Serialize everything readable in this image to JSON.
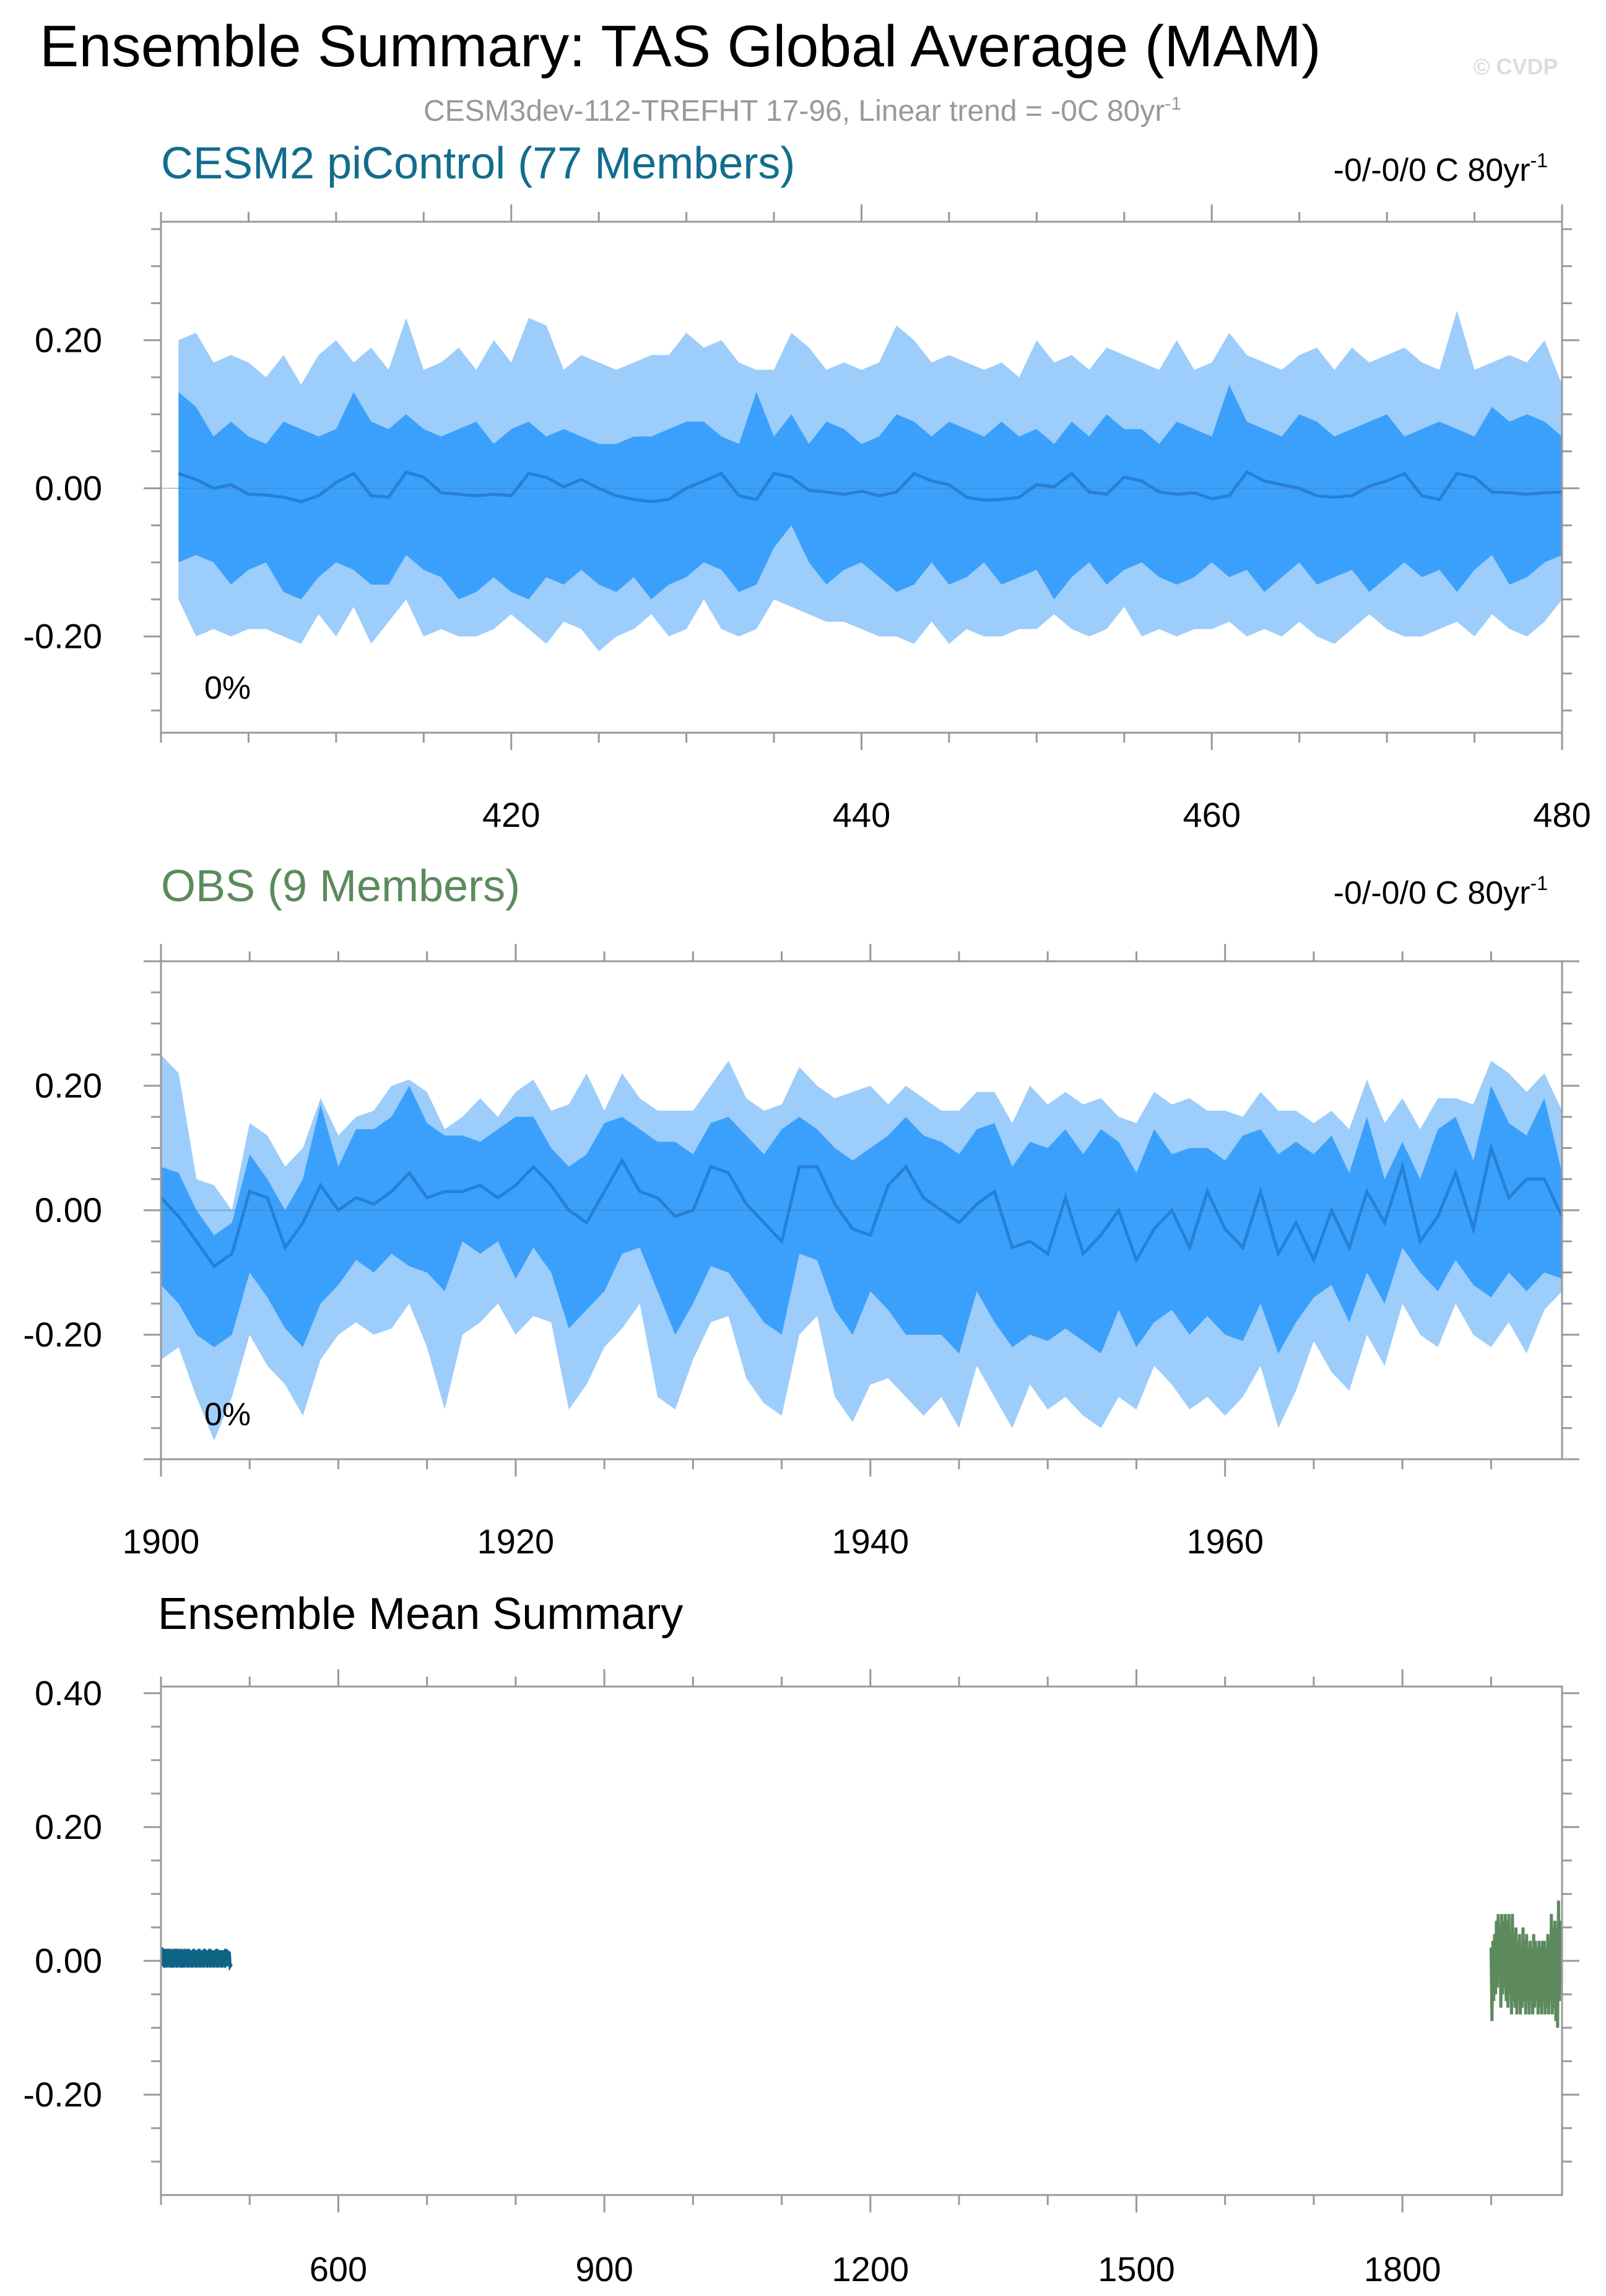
{
  "figure": {
    "title": "Ensemble Summary: TAS Global Average (MAM)",
    "subtitle": "CESM3dev-112-TREFHT 17-96, Linear trend = -0C 80yr",
    "subtitle_sup": "-1",
    "watermark": "© CVDP"
  },
  "chart_data": [
    {
      "type": "area",
      "title": "CESM2 piControl (77 Members)",
      "title_color": "#116d8d",
      "trend_label": "-0/-0/0 C 80yr",
      "trend_sup": "-1",
      "percent_label": "0%",
      "ylim": [
        -0.33,
        0.36
      ],
      "xlim": [
        400,
        480
      ],
      "yticks": [
        -0.2,
        0.0,
        0.2
      ],
      "ytick_labels": [
        "-0.20",
        "0.00",
        "0.20"
      ],
      "xticks": [
        420,
        440,
        460,
        480
      ],
      "xtick_labels": [
        "420",
        "440",
        "460",
        "480"
      ],
      "x_start": 401,
      "x_step": 1,
      "mean": [
        0.02,
        0.012,
        0.0,
        0.005,
        -0.008,
        -0.009,
        -0.012,
        -0.018,
        -0.01,
        0.008,
        0.02,
        -0.01,
        -0.012,
        0.022,
        0.015,
        -0.006,
        -0.008,
        -0.01,
        -0.008,
        -0.01,
        0.02,
        0.015,
        0.002,
        0.012,
        0.0,
        -0.01,
        -0.015,
        -0.018,
        -0.015,
        0.0,
        0.01,
        0.02,
        -0.01,
        -0.015,
        0.02,
        0.015,
        -0.003,
        -0.005,
        -0.008,
        -0.004,
        -0.01,
        -0.005,
        0.02,
        0.01,
        0.005,
        -0.012,
        -0.016,
        -0.015,
        -0.012,
        0.005,
        0.002,
        0.02,
        -0.005,
        -0.008,
        0.015,
        0.01,
        -0.005,
        -0.008,
        -0.006,
        -0.014,
        -0.01,
        0.022,
        0.01,
        0.005,
        0.0,
        -0.01,
        -0.012,
        -0.01,
        0.003,
        0.01,
        0.02,
        -0.01,
        -0.015,
        0.02,
        0.015,
        -0.005,
        -0.006,
        -0.008,
        -0.006,
        -0.005
      ],
      "p25": [
        -0.1,
        -0.09,
        -0.1,
        -0.13,
        -0.11,
        -0.1,
        -0.14,
        -0.15,
        -0.12,
        -0.1,
        -0.11,
        -0.13,
        -0.13,
        -0.09,
        -0.11,
        -0.12,
        -0.15,
        -0.14,
        -0.12,
        -0.14,
        -0.15,
        -0.12,
        -0.13,
        -0.11,
        -0.13,
        -0.14,
        -0.12,
        -0.15,
        -0.13,
        -0.12,
        -0.1,
        -0.11,
        -0.14,
        -0.13,
        -0.08,
        -0.05,
        -0.1,
        -0.13,
        -0.11,
        -0.1,
        -0.12,
        -0.14,
        -0.13,
        -0.1,
        -0.13,
        -0.12,
        -0.1,
        -0.13,
        -0.12,
        -0.11,
        -0.15,
        -0.12,
        -0.1,
        -0.13,
        -0.11,
        -0.1,
        -0.12,
        -0.13,
        -0.12,
        -0.1,
        -0.12,
        -0.11,
        -0.14,
        -0.12,
        -0.1,
        -0.13,
        -0.12,
        -0.11,
        -0.14,
        -0.12,
        -0.1,
        -0.12,
        -0.11,
        -0.14,
        -0.11,
        -0.09,
        -0.13,
        -0.12,
        -0.1,
        -0.09
      ],
      "p75": [
        0.13,
        0.11,
        0.07,
        0.09,
        0.07,
        0.06,
        0.09,
        0.08,
        0.07,
        0.08,
        0.13,
        0.09,
        0.08,
        0.1,
        0.08,
        0.07,
        0.08,
        0.09,
        0.06,
        0.08,
        0.09,
        0.07,
        0.08,
        0.07,
        0.06,
        0.06,
        0.07,
        0.07,
        0.08,
        0.09,
        0.09,
        0.07,
        0.06,
        0.13,
        0.07,
        0.1,
        0.06,
        0.09,
        0.08,
        0.06,
        0.07,
        0.1,
        0.09,
        0.07,
        0.09,
        0.08,
        0.07,
        0.09,
        0.07,
        0.08,
        0.06,
        0.09,
        0.07,
        0.1,
        0.08,
        0.08,
        0.06,
        0.09,
        0.08,
        0.07,
        0.14,
        0.09,
        0.08,
        0.07,
        0.1,
        0.09,
        0.07,
        0.08,
        0.09,
        0.1,
        0.07,
        0.08,
        0.09,
        0.08,
        0.07,
        0.11,
        0.09,
        0.1,
        0.09,
        0.07
      ],
      "p0": [
        -0.15,
        -0.2,
        -0.19,
        -0.2,
        -0.19,
        -0.19,
        -0.2,
        -0.21,
        -0.17,
        -0.2,
        -0.16,
        -0.21,
        -0.18,
        -0.15,
        -0.2,
        -0.19,
        -0.2,
        -0.2,
        -0.19,
        -0.17,
        -0.19,
        -0.21,
        -0.18,
        -0.19,
        -0.22,
        -0.2,
        -0.19,
        -0.17,
        -0.2,
        -0.19,
        -0.15,
        -0.19,
        -0.2,
        -0.19,
        -0.15,
        -0.16,
        -0.17,
        -0.18,
        -0.18,
        -0.19,
        -0.2,
        -0.2,
        -0.21,
        -0.18,
        -0.21,
        -0.19,
        -0.2,
        -0.2,
        -0.19,
        -0.19,
        -0.17,
        -0.19,
        -0.2,
        -0.19,
        -0.16,
        -0.2,
        -0.19,
        -0.2,
        -0.19,
        -0.19,
        -0.18,
        -0.2,
        -0.19,
        -0.2,
        -0.18,
        -0.2,
        -0.21,
        -0.19,
        -0.17,
        -0.19,
        -0.2,
        -0.2,
        -0.19,
        -0.18,
        -0.2,
        -0.17,
        -0.19,
        -0.2,
        -0.18,
        -0.15
      ],
      "p100": [
        0.2,
        0.21,
        0.17,
        0.18,
        0.17,
        0.15,
        0.18,
        0.14,
        0.18,
        0.2,
        0.17,
        0.19,
        0.16,
        0.23,
        0.16,
        0.17,
        0.19,
        0.16,
        0.2,
        0.17,
        0.23,
        0.22,
        0.16,
        0.18,
        0.17,
        0.16,
        0.17,
        0.18,
        0.18,
        0.21,
        0.19,
        0.2,
        0.17,
        0.16,
        0.16,
        0.21,
        0.19,
        0.16,
        0.17,
        0.16,
        0.17,
        0.22,
        0.2,
        0.17,
        0.18,
        0.17,
        0.16,
        0.17,
        0.15,
        0.2,
        0.17,
        0.18,
        0.16,
        0.19,
        0.18,
        0.17,
        0.16,
        0.2,
        0.16,
        0.17,
        0.21,
        0.18,
        0.17,
        0.16,
        0.18,
        0.19,
        0.16,
        0.19,
        0.17,
        0.18,
        0.19,
        0.17,
        0.16,
        0.24,
        0.16,
        0.17,
        0.18,
        0.17,
        0.2,
        0.14
      ]
    },
    {
      "type": "area",
      "title": "OBS (9 Members)",
      "title_color": "#5c8a5c",
      "trend_label": "-0/-0/0 C 80yr",
      "trend_sup": "-1",
      "percent_label": "0%",
      "ylim": [
        -0.4,
        0.4
      ],
      "xlim": [
        1900,
        1979
      ],
      "yticks": [
        -0.2,
        0.0,
        0.2
      ],
      "ytick_labels": [
        "-0.20",
        "0.00",
        "0.20"
      ],
      "xticks": [
        1900,
        1920,
        1940,
        1960
      ],
      "xtick_labels": [
        "1900",
        "1920",
        "1940",
        "1960"
      ],
      "x_start": 1900,
      "x_step": 1,
      "mean": [
        0.02,
        -0.01,
        -0.05,
        -0.09,
        -0.07,
        0.03,
        0.02,
        -0.06,
        -0.02,
        0.04,
        0.0,
        0.02,
        0.01,
        0.03,
        0.06,
        0.02,
        0.03,
        0.03,
        0.04,
        0.02,
        0.04,
        0.07,
        0.04,
        0.0,
        -0.02,
        0.03,
        0.08,
        0.03,
        0.02,
        -0.01,
        0.0,
        0.07,
        0.06,
        0.01,
        -0.02,
        -0.05,
        0.07,
        0.07,
        0.01,
        -0.03,
        -0.04,
        0.04,
        0.07,
        0.02,
        0.0,
        -0.02,
        0.01,
        0.03,
        -0.06,
        -0.05,
        -0.07,
        0.02,
        -0.07,
        -0.04,
        0.0,
        -0.08,
        -0.03,
        0.0,
        -0.06,
        0.03,
        -0.03,
        -0.06,
        0.03,
        -0.07,
        -0.02,
        -0.08,
        0.0,
        -0.06,
        0.03,
        -0.02,
        0.07,
        -0.05,
        -0.01,
        0.06,
        -0.03,
        0.1,
        0.02,
        0.05,
        0.05,
        -0.01
      ],
      "p25": [
        -0.12,
        -0.15,
        -0.2,
        -0.22,
        -0.2,
        -0.1,
        -0.14,
        -0.19,
        -0.22,
        -0.15,
        -0.12,
        -0.08,
        -0.1,
        -0.07,
        -0.09,
        -0.1,
        -0.13,
        -0.05,
        -0.07,
        -0.05,
        -0.11,
        -0.06,
        -0.1,
        -0.19,
        -0.16,
        -0.13,
        -0.07,
        -0.06,
        -0.13,
        -0.2,
        -0.15,
        -0.09,
        -0.1,
        -0.14,
        -0.18,
        -0.2,
        -0.07,
        -0.08,
        -0.16,
        -0.2,
        -0.13,
        -0.16,
        -0.2,
        -0.2,
        -0.2,
        -0.23,
        -0.13,
        -0.18,
        -0.22,
        -0.2,
        -0.21,
        -0.19,
        -0.21,
        -0.23,
        -0.16,
        -0.22,
        -0.18,
        -0.16,
        -0.2,
        -0.17,
        -0.2,
        -0.21,
        -0.15,
        -0.23,
        -0.18,
        -0.14,
        -0.12,
        -0.18,
        -0.1,
        -0.15,
        -0.06,
        -0.1,
        -0.13,
        -0.08,
        -0.12,
        -0.14,
        -0.1,
        -0.13,
        -0.1,
        -0.11
      ],
      "p75": [
        0.07,
        0.06,
        0.0,
        -0.04,
        -0.02,
        0.09,
        0.05,
        0.0,
        0.05,
        0.17,
        0.07,
        0.13,
        0.13,
        0.15,
        0.2,
        0.14,
        0.12,
        0.12,
        0.11,
        0.13,
        0.15,
        0.15,
        0.1,
        0.07,
        0.09,
        0.14,
        0.15,
        0.13,
        0.11,
        0.11,
        0.09,
        0.14,
        0.15,
        0.12,
        0.09,
        0.13,
        0.15,
        0.13,
        0.1,
        0.08,
        0.1,
        0.12,
        0.15,
        0.12,
        0.11,
        0.09,
        0.13,
        0.14,
        0.07,
        0.11,
        0.1,
        0.13,
        0.09,
        0.13,
        0.11,
        0.06,
        0.13,
        0.09,
        0.1,
        0.1,
        0.08,
        0.12,
        0.13,
        0.09,
        0.11,
        0.09,
        0.12,
        0.06,
        0.15,
        0.05,
        0.11,
        0.05,
        0.13,
        0.15,
        0.08,
        0.2,
        0.14,
        0.12,
        0.18,
        0.06
      ],
      "p0": [
        -0.24,
        -0.22,
        -0.3,
        -0.37,
        -0.3,
        -0.2,
        -0.25,
        -0.28,
        -0.33,
        -0.24,
        -0.2,
        -0.18,
        -0.2,
        -0.19,
        -0.15,
        -0.22,
        -0.32,
        -0.2,
        -0.18,
        -0.15,
        -0.2,
        -0.17,
        -0.18,
        -0.32,
        -0.28,
        -0.22,
        -0.19,
        -0.15,
        -0.3,
        -0.32,
        -0.24,
        -0.18,
        -0.17,
        -0.27,
        -0.31,
        -0.33,
        -0.2,
        -0.17,
        -0.3,
        -0.34,
        -0.28,
        -0.27,
        -0.3,
        -0.33,
        -0.3,
        -0.35,
        -0.25,
        -0.3,
        -0.35,
        -0.28,
        -0.32,
        -0.3,
        -0.33,
        -0.35,
        -0.3,
        -0.32,
        -0.25,
        -0.28,
        -0.32,
        -0.3,
        -0.33,
        -0.3,
        -0.25,
        -0.35,
        -0.29,
        -0.21,
        -0.26,
        -0.29,
        -0.2,
        -0.25,
        -0.15,
        -0.2,
        -0.22,
        -0.15,
        -0.2,
        -0.22,
        -0.18,
        -0.23,
        -0.16,
        -0.13
      ],
      "p100": [
        0.25,
        0.22,
        0.05,
        0.04,
        0.0,
        0.14,
        0.12,
        0.07,
        0.1,
        0.18,
        0.12,
        0.15,
        0.16,
        0.2,
        0.21,
        0.19,
        0.13,
        0.15,
        0.18,
        0.15,
        0.19,
        0.21,
        0.16,
        0.17,
        0.22,
        0.16,
        0.22,
        0.18,
        0.16,
        0.16,
        0.16,
        0.2,
        0.24,
        0.18,
        0.16,
        0.17,
        0.23,
        0.2,
        0.18,
        0.19,
        0.2,
        0.17,
        0.2,
        0.18,
        0.16,
        0.16,
        0.19,
        0.19,
        0.14,
        0.2,
        0.17,
        0.19,
        0.17,
        0.18,
        0.15,
        0.14,
        0.19,
        0.17,
        0.18,
        0.16,
        0.16,
        0.15,
        0.19,
        0.16,
        0.16,
        0.14,
        0.16,
        0.13,
        0.21,
        0.14,
        0.18,
        0.13,
        0.18,
        0.18,
        0.17,
        0.24,
        0.22,
        0.19,
        0.22,
        0.16
      ]
    },
    {
      "type": "line",
      "title": "Ensemble Mean Summary",
      "ylim": [
        -0.35,
        0.41
      ],
      "xlim": [
        400,
        1980
      ],
      "yticks": [
        -0.2,
        0.0,
        0.2,
        0.4
      ],
      "ytick_labels": [
        "-0.20",
        "0.00",
        "0.20",
        "0.40"
      ],
      "xticks": [
        600,
        900,
        1200,
        1500,
        1800
      ],
      "xtick_labels": [
        "600",
        "900",
        "1200",
        "1500",
        "1800"
      ],
      "series": [
        {
          "color": "#0f6384",
          "x_start": 401,
          "x_step": 1,
          "values": [
            0.02,
            -0.008,
            0.018,
            -0.01,
            0.018,
            -0.01,
            0.018,
            -0.008,
            0.018,
            -0.01,
            0.018,
            -0.01,
            0.016,
            -0.01,
            0.018,
            -0.008,
            0.018,
            -0.01,
            0.018,
            -0.008,
            0.016,
            -0.01,
            0.018,
            -0.01,
            0.016,
            -0.01,
            0.018,
            -0.008,
            0.016,
            -0.01,
            0.018,
            -0.008,
            0.016,
            -0.01,
            0.016,
            -0.01,
            0.018,
            -0.008,
            0.016,
            -0.01,
            0.016,
            -0.008,
            0.018,
            -0.01,
            0.016,
            -0.008,
            0.016,
            -0.01,
            0.018,
            -0.008,
            0.016,
            -0.01,
            0.016,
            -0.008,
            0.018,
            -0.01,
            0.016,
            -0.008,
            0.016,
            -0.01,
            0.016,
            -0.008,
            0.018,
            -0.01,
            0.016,
            -0.008,
            0.016,
            -0.01,
            0.016,
            -0.008,
            0.016,
            -0.01,
            0.018,
            -0.008,
            0.016,
            -0.008,
            0.014,
            -0.008,
            -0.006,
            -0.005
          ]
        },
        {
          "color": "#5c8a5c",
          "x_start": 1900,
          "x_step": 1,
          "values": [
            0.02,
            -0.09,
            0.03,
            -0.06,
            0.04,
            -0.05,
            0.06,
            -0.04,
            0.07,
            -0.02,
            0.05,
            -0.07,
            0.07,
            -0.05,
            0.06,
            -0.04,
            0.07,
            -0.06,
            0.06,
            -0.07,
            0.07,
            -0.05,
            0.04,
            -0.08,
            0.07,
            -0.06,
            0.04,
            -0.07,
            0.05,
            -0.08,
            0.03,
            -0.06,
            0.04,
            -0.08,
            0.02,
            -0.07,
            0.05,
            -0.06,
            0.03,
            -0.08,
            0.04,
            -0.06,
            0.02,
            -0.08,
            0.03,
            -0.05,
            0.02,
            -0.08,
            0.04,
            -0.07,
            0.03,
            -0.06,
            0.02,
            -0.08,
            0.03,
            -0.07,
            0.02,
            -0.08,
            0.03,
            -0.06,
            0.03,
            -0.08,
            0.02,
            -0.07,
            0.04,
            -0.08,
            0.03,
            -0.06,
            0.07,
            -0.08,
            0.05,
            -0.07,
            0.06,
            -0.09,
            0.05,
            -0.1,
            0.09,
            -0.06,
            0.06,
            -0.01
          ]
        }
      ]
    }
  ]
}
